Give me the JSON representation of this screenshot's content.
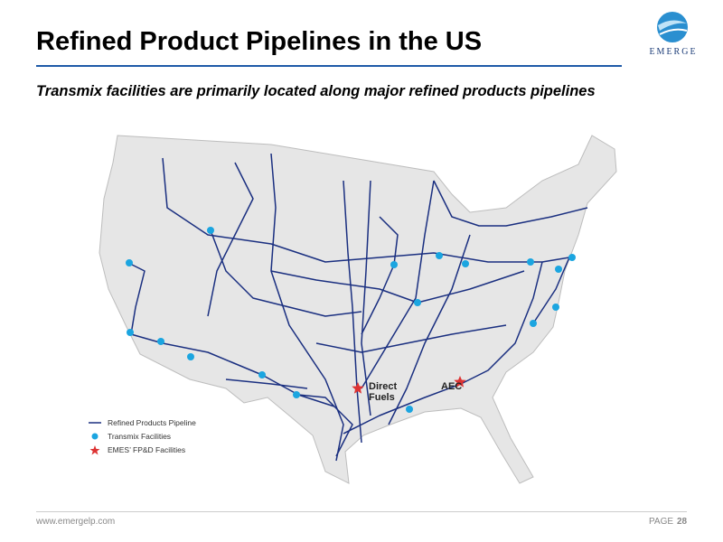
{
  "header": {
    "title": "Refined Product Pipelines in the US",
    "subtitle": "Transmix facilities are primarily located along major refined products pipelines"
  },
  "logo": {
    "name": "EMERGE"
  },
  "map": {
    "labels": [
      "Direct Fuels",
      "AEC"
    ]
  },
  "legend": [
    "Refined Products Pipeline",
    "Transmix Facilities",
    "EMES’ FP&D Facilities"
  ],
  "footer": {
    "url": "www.emergelp.com",
    "page_label": "PAGE",
    "page_number": "28"
  }
}
